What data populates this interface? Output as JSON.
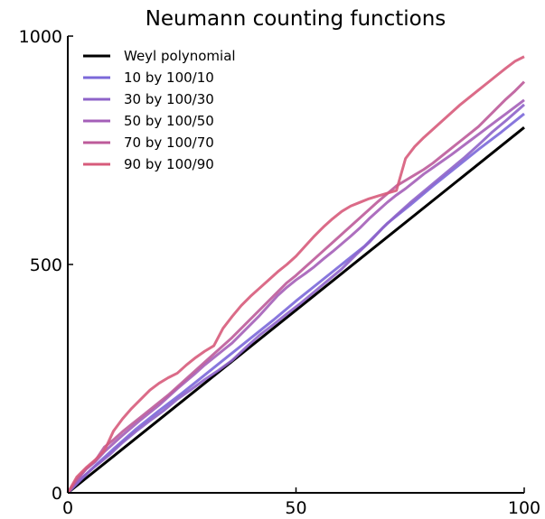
{
  "chart_data": {
    "type": "line",
    "title": "Neumann counting functions",
    "xlabel": "",
    "ylabel": "",
    "xlim": [
      0,
      100
    ],
    "ylim": [
      0,
      1000
    ],
    "x_ticks": [
      0,
      50,
      100
    ],
    "y_ticks": [
      0,
      500,
      1000
    ],
    "x_tick_labels": [
      "0",
      "50",
      "100"
    ],
    "y_tick_labels": [
      "0",
      "500",
      "1000"
    ],
    "grid": false,
    "legend_position": "top-left",
    "weyl": {
      "name": "Weyl polynomial",
      "color": "#000000",
      "x": [
        0,
        100
      ],
      "y": [
        0,
        800
      ]
    },
    "series": [
      {
        "name": "10 by 100/10",
        "color": "#7b68d9",
        "x": [
          0,
          5,
          10,
          15,
          20,
          25,
          30,
          35,
          40,
          45,
          50,
          55,
          60,
          65,
          70,
          75,
          80,
          85,
          90,
          95,
          100
        ],
        "y": [
          0,
          50,
          96,
          140,
          180,
          218,
          258,
          298,
          338,
          378,
          420,
          460,
          500,
          540,
          590,
          630,
          672,
          712,
          752,
          790,
          830
        ]
      },
      {
        "name": "30 by 100/30",
        "color": "#8e63c9",
        "x": [
          0,
          3,
          6,
          9,
          12,
          15,
          18,
          21,
          24,
          27,
          30,
          33,
          36,
          39,
          42,
          45,
          48,
          51,
          54,
          57,
          60,
          63,
          66,
          69,
          72,
          75,
          78,
          81,
          84,
          87,
          90,
          93,
          96,
          100
        ],
        "y": [
          0,
          32,
          58,
          82,
          110,
          135,
          158,
          180,
          205,
          226,
          248,
          268,
          290,
          318,
          345,
          368,
          392,
          415,
          440,
          465,
          490,
          520,
          548,
          580,
          608,
          635,
          660,
          685,
          710,
          735,
          762,
          790,
          815,
          850
        ]
      },
      {
        "name": "50 by 100/50",
        "color": "#a45fb8",
        "x": [
          0,
          2,
          4,
          6,
          8,
          10,
          12,
          14,
          16,
          18,
          20,
          22,
          24,
          26,
          28,
          30,
          32,
          34,
          36,
          38,
          40,
          42,
          44,
          46,
          48,
          50,
          52,
          54,
          56,
          58,
          60,
          62,
          64,
          66,
          68,
          70,
          72,
          74,
          76,
          78,
          80,
          82,
          84,
          86,
          88,
          90,
          92,
          94,
          96,
          98,
          100
        ],
        "y": [
          0,
          28,
          52,
          68,
          90,
          108,
          126,
          143,
          160,
          176,
          192,
          210,
          228,
          245,
          262,
          280,
          296,
          312,
          328,
          348,
          368,
          388,
          410,
          432,
          450,
          466,
          480,
          495,
          512,
          528,
          545,
          562,
          580,
          600,
          618,
          636,
          652,
          666,
          682,
          698,
          712,
          726,
          740,
          755,
          770,
          785,
          800,
          815,
          830,
          845,
          860
        ]
      },
      {
        "name": "70 by 100/70",
        "color": "#bd5b9a",
        "x": [
          0,
          2,
          4,
          6,
          8,
          10,
          12,
          14,
          16,
          18,
          20,
          22,
          24,
          26,
          28,
          30,
          32,
          34,
          36,
          38,
          40,
          42,
          44,
          46,
          48,
          50,
          52,
          54,
          56,
          58,
          60,
          62,
          64,
          66,
          68,
          70,
          72,
          74,
          76,
          78,
          80,
          82,
          84,
          86,
          88,
          90,
          92,
          94,
          96,
          98,
          100
        ],
        "y": [
          0,
          30,
          52,
          70,
          100,
          116,
          134,
          150,
          166,
          182,
          198,
          214,
          232,
          250,
          268,
          286,
          304,
          322,
          340,
          360,
          380,
          400,
          420,
          440,
          460,
          476,
          494,
          512,
          530,
          548,
          566,
          584,
          602,
          620,
          638,
          655,
          672,
          684,
          696,
          708,
          722,
          738,
          754,
          770,
          786,
          802,
          822,
          842,
          862,
          880,
          900
        ]
      },
      {
        "name": "90 by 100/90",
        "color": "#d75b7b",
        "x": [
          0,
          2,
          4,
          6,
          8,
          10,
          12,
          14,
          16,
          18,
          20,
          22,
          24,
          26,
          28,
          30,
          32,
          34,
          36,
          38,
          40,
          42,
          44,
          46,
          48,
          50,
          52,
          54,
          56,
          58,
          60,
          62,
          64,
          66,
          68,
          70,
          72,
          74,
          76,
          78,
          80,
          82,
          84,
          86,
          88,
          90,
          92,
          94,
          96,
          98,
          100
        ],
        "y": [
          0,
          35,
          55,
          72,
          92,
          135,
          162,
          185,
          205,
          225,
          240,
          252,
          262,
          280,
          296,
          310,
          322,
          360,
          386,
          410,
          430,
          448,
          466,
          484,
          500,
          518,
          540,
          562,
          582,
          600,
          616,
          628,
          636,
          644,
          650,
          656,
          662,
          732,
          758,
          778,
          796,
          814,
          832,
          850,
          866,
          882,
          898,
          914,
          930,
          945,
          955
        ]
      }
    ]
  }
}
